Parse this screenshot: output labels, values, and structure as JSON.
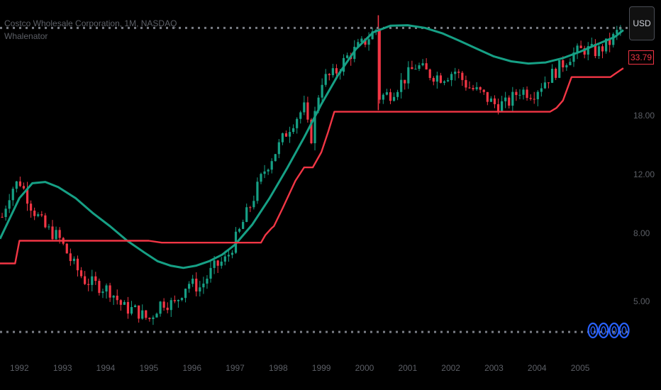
{
  "header": {
    "line1": "Costco Wholesale Corporation, 1M, NASDAQ",
    "line2": "Whalenator"
  },
  "currency_button": "USD",
  "last_price": "33.79",
  "chart_data": {
    "type": "candlestick",
    "y_scale": "log",
    "ylim": [
      3.5,
      40
    ],
    "xlim": [
      1991.55,
      2006.1
    ],
    "y_tick_labels": [
      "5.00",
      "8.00",
      "12.00",
      "18.00"
    ],
    "y_ticks": [
      5,
      8,
      12,
      18
    ],
    "x_tick_labels": [
      "1992",
      "1993",
      "1994",
      "1995",
      "1996",
      "1997",
      "1998",
      "1999",
      "2000",
      "2001",
      "2002",
      "2003",
      "2004",
      "2005"
    ],
    "x_ticks": [
      1992,
      1993,
      1994,
      1995,
      1996,
      1997,
      1998,
      1999,
      2000,
      2001,
      2002,
      2003,
      2004,
      2005
    ],
    "dotted_levels": [
      33,
      4.05
    ],
    "series": [
      {
        "kind": "close",
        "x": [
          1991.55,
          1991.8,
          1992.0,
          1992.3,
          1992.6,
          1992.9,
          1993.2,
          1993.5,
          1993.8,
          1994.1,
          1994.4,
          1994.7,
          1995.0,
          1995.3,
          1995.6,
          1995.9,
          1996.2,
          1996.5,
          1996.8,
          1997.1,
          1997.4,
          1997.7,
          1998.0,
          1998.3,
          1998.6,
          1998.75,
          1999.0,
          1999.3,
          1999.6,
          2000.0,
          2000.3,
          2000.35,
          2000.6,
          2000.9,
          2001.2,
          2001.5,
          2001.8,
          2002.1,
          2002.4,
          2002.7,
          2003.0,
          2003.3,
          2003.6,
          2003.9,
          2004.2,
          2004.5,
          2004.8,
          2005.1,
          2005.4,
          2005.7,
          2006.0
        ],
        "y": [
          8.5,
          10.8,
          11.5,
          9.5,
          8.3,
          7.8,
          6.6,
          5.8,
          5.6,
          5.4,
          4.8,
          4.7,
          4.4,
          5.0,
          4.9,
          5.7,
          5.5,
          6.3,
          6.7,
          8.1,
          10.0,
          12.5,
          14.5,
          17.0,
          19.0,
          15.0,
          23.0,
          24.0,
          27.0,
          30.0,
          33.0,
          20.5,
          21.0,
          23.0,
          25.5,
          24.0,
          23.5,
          24.5,
          22.0,
          21.0,
          19.5,
          19.5,
          21.5,
          21.0,
          23.0,
          25.0,
          27.5,
          28.5,
          28.0,
          30.0,
          33.8
        ]
      },
      {
        "name": "",
        "kind": "trend-line",
        "color": "#16a085",
        "x": [
          1991.55,
          1991.8,
          1992.0,
          1992.3,
          1992.6,
          1992.9,
          1993.3,
          1993.7,
          1994.1,
          1994.5,
          1994.9,
          1995.2,
          1995.5,
          1995.8,
          1996.1,
          1996.4,
          1996.7,
          1997.0,
          1997.4,
          1997.8,
          1998.2,
          1998.6,
          1999.0,
          1999.4,
          1999.8,
          2000.2,
          2000.6,
          2001.0,
          2001.4,
          2001.8,
          2002.2,
          2002.6,
          2003.0,
          2003.4,
          2003.8,
          2004.2,
          2004.6,
          2005.0,
          2005.4,
          2005.8,
          2006.0
        ],
        "y": [
          7.7,
          9.0,
          10.2,
          11.3,
          11.4,
          11.0,
          10.2,
          9.2,
          8.4,
          7.6,
          7.0,
          6.6,
          6.4,
          6.3,
          6.4,
          6.6,
          6.9,
          7.4,
          8.5,
          10.2,
          12.5,
          15.5,
          19.5,
          24.0,
          28.5,
          32.0,
          33.5,
          33.6,
          33.0,
          31.8,
          30.2,
          28.6,
          27.1,
          26.2,
          25.8,
          26.0,
          26.8,
          28.0,
          29.5,
          31.0,
          32.5
        ]
      },
      {
        "name": "",
        "kind": "step-line",
        "color": "#f23645",
        "x": [
          1991.55,
          1991.9,
          1992.0,
          1993.0,
          1994.0,
          1995.0,
          1995.3,
          1996.0,
          1997.0,
          1997.6,
          1997.7,
          1997.85,
          1997.9,
          1998.1,
          1998.4,
          1998.6,
          1998.8,
          1999.0,
          1999.15,
          1999.3,
          2001.0,
          2002.0,
          2003.0,
          2004.0,
          2004.3,
          2004.45,
          2004.6,
          2004.8,
          2005.0,
          2005.5,
          2005.7,
          2005.8,
          2006.0
        ],
        "y": [
          6.5,
          6.5,
          7.6,
          7.6,
          7.6,
          7.6,
          7.5,
          7.5,
          7.5,
          7.5,
          7.9,
          8.3,
          8.4,
          9.5,
          11.5,
          12.6,
          12.6,
          14.0,
          16.0,
          18.5,
          18.5,
          18.5,
          18.5,
          18.5,
          18.5,
          19.0,
          20.0,
          23.5,
          23.5,
          23.5,
          23.5,
          24.0,
          25.0
        ]
      }
    ]
  },
  "colors": {
    "background": "#000000",
    "up_candle": "#16a085",
    "down_candle": "#f23645",
    "trend_line": "#16a085",
    "step_line": "#f23645",
    "axis_text": "#5c5f66",
    "dotted_line": "#7a7d85"
  }
}
